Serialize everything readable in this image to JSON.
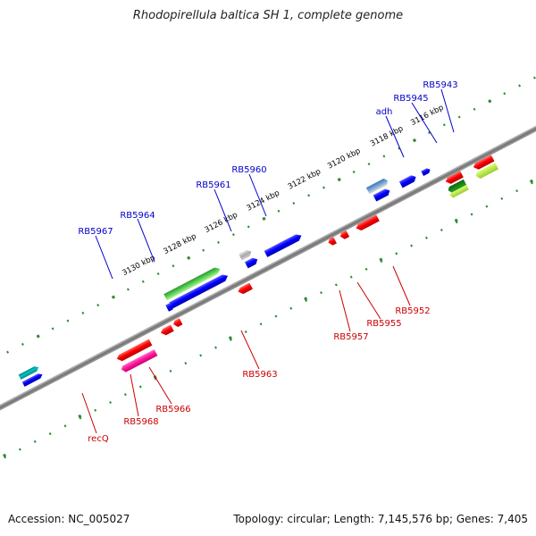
{
  "title": "Rhodopirellula baltica SH 1, complete genome",
  "footer": {
    "accession": "Accession: NC_005027",
    "summary": "Topology: circular; Length: 7,145,576 bp; Genes: 7,405"
  },
  "colors": {
    "backbone": "#808080",
    "tick": "#2e8b2e",
    "ruler_text": "#000000",
    "forward_label": "#0000cc",
    "reverse_label": "#cc0000",
    "forward_gene": "#0000ff",
    "reverse_gene": "#ff0000"
  },
  "ruler_labels": [
    "3116 kbp",
    "3118 kbp",
    "3120 kbp",
    "3122 kbp",
    "3124 kbp",
    "3126 kbp",
    "3128 kbp",
    "3130 kbp"
  ],
  "forward_labels": [
    "RB5943",
    "RB5945",
    "adh",
    "RB5960",
    "RB5961",
    "RB5964",
    "RB5967"
  ],
  "reverse_labels": [
    "RB5952",
    "RB5955",
    "RB5957",
    "RB5963",
    "RB5966",
    "RB5968",
    "recQ"
  ]
}
